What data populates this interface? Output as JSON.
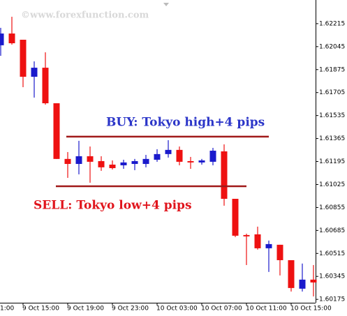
{
  "chart_data": {
    "type": "candlestick",
    "watermark": "©www.forexfunction.com",
    "edge_label": "1:00",
    "categories": [
      null,
      null,
      "9 Oct 15:00",
      null,
      null,
      null,
      "9 Oct 19:00",
      null,
      null,
      null,
      "9 Oct 23:00",
      null,
      null,
      null,
      "10 Oct 03:00",
      null,
      null,
      null,
      "10 Oct 07:00",
      null,
      null,
      null,
      "10 Oct 11:00",
      null,
      null,
      null,
      "10 Oct 15:00",
      null,
      null
    ],
    "open": [
      1.62055,
      1.62142,
      1.62096,
      1.61822,
      1.61889,
      1.61626,
      1.61214,
      1.61177,
      1.61234,
      1.61198,
      1.61172,
      1.61167,
      1.61177,
      1.61177,
      1.61208,
      1.6125,
      1.61281,
      1.61198,
      1.61188,
      1.61193,
      1.6127,
      1.60919,
      1.60651,
      1.60656,
      1.60553,
      1.60579,
      1.60465,
      1.60254,
      1.60321
    ],
    "high": [
      1.62184,
      1.62266,
      1.62096,
      1.61936,
      1.62003,
      1.61626,
      1.61265,
      1.61348,
      1.61306,
      1.61234,
      1.61203,
      1.61208,
      1.61214,
      1.61244,
      1.61286,
      1.61353,
      1.61306,
      1.61229,
      1.61214,
      1.61296,
      1.61322,
      1.60919,
      1.60661,
      1.60713,
      1.6061,
      1.60579,
      1.60465,
      1.6044,
      1.60429
    ],
    "low": [
      1.61977,
      1.6206,
      1.61745,
      1.61668,
      1.61616,
      1.61214,
      1.61074,
      1.611,
      1.61038,
      1.61126,
      1.61136,
      1.61141,
      1.61131,
      1.61152,
      1.61193,
      1.61224,
      1.61167,
      1.61141,
      1.61172,
      1.61167,
      1.60868,
      1.60636,
      1.60429,
      1.60543,
      1.60378,
      1.60352,
      1.60233,
      1.60233,
      1.60197
    ],
    "close": [
      1.62142,
      1.6207,
      1.61822,
      1.61889,
      1.61626,
      1.61214,
      1.61177,
      1.61234,
      1.61193,
      1.61152,
      1.61146,
      1.61188,
      1.61198,
      1.61214,
      1.6125,
      1.61281,
      1.61193,
      1.61188,
      1.61203,
      1.61275,
      1.60919,
      1.60646,
      1.60641,
      1.60553,
      1.60584,
      1.60465,
      1.60259,
      1.60321,
      1.603
    ],
    "up_color": "#1a1acc",
    "down_color": "#ee1111",
    "ylim": [
      1.6015,
      1.6239
    ],
    "yticks": [
      1.62215,
      1.62045,
      1.61875,
      1.61705,
      1.61535,
      1.61365,
      1.61195,
      1.61025,
      1.60855,
      1.60685,
      1.60515,
      1.60345,
      1.60175
    ],
    "levels": [
      {
        "label": "BUY: Tokyo high+4 pips",
        "value": 1.61379,
        "color": "#a01818",
        "label_color": "#2b35c8"
      },
      {
        "label": "SELL: Tokyo low+4 pips",
        "value": 1.61012,
        "color": "#a01818",
        "label_color": "#e0141c"
      }
    ]
  }
}
